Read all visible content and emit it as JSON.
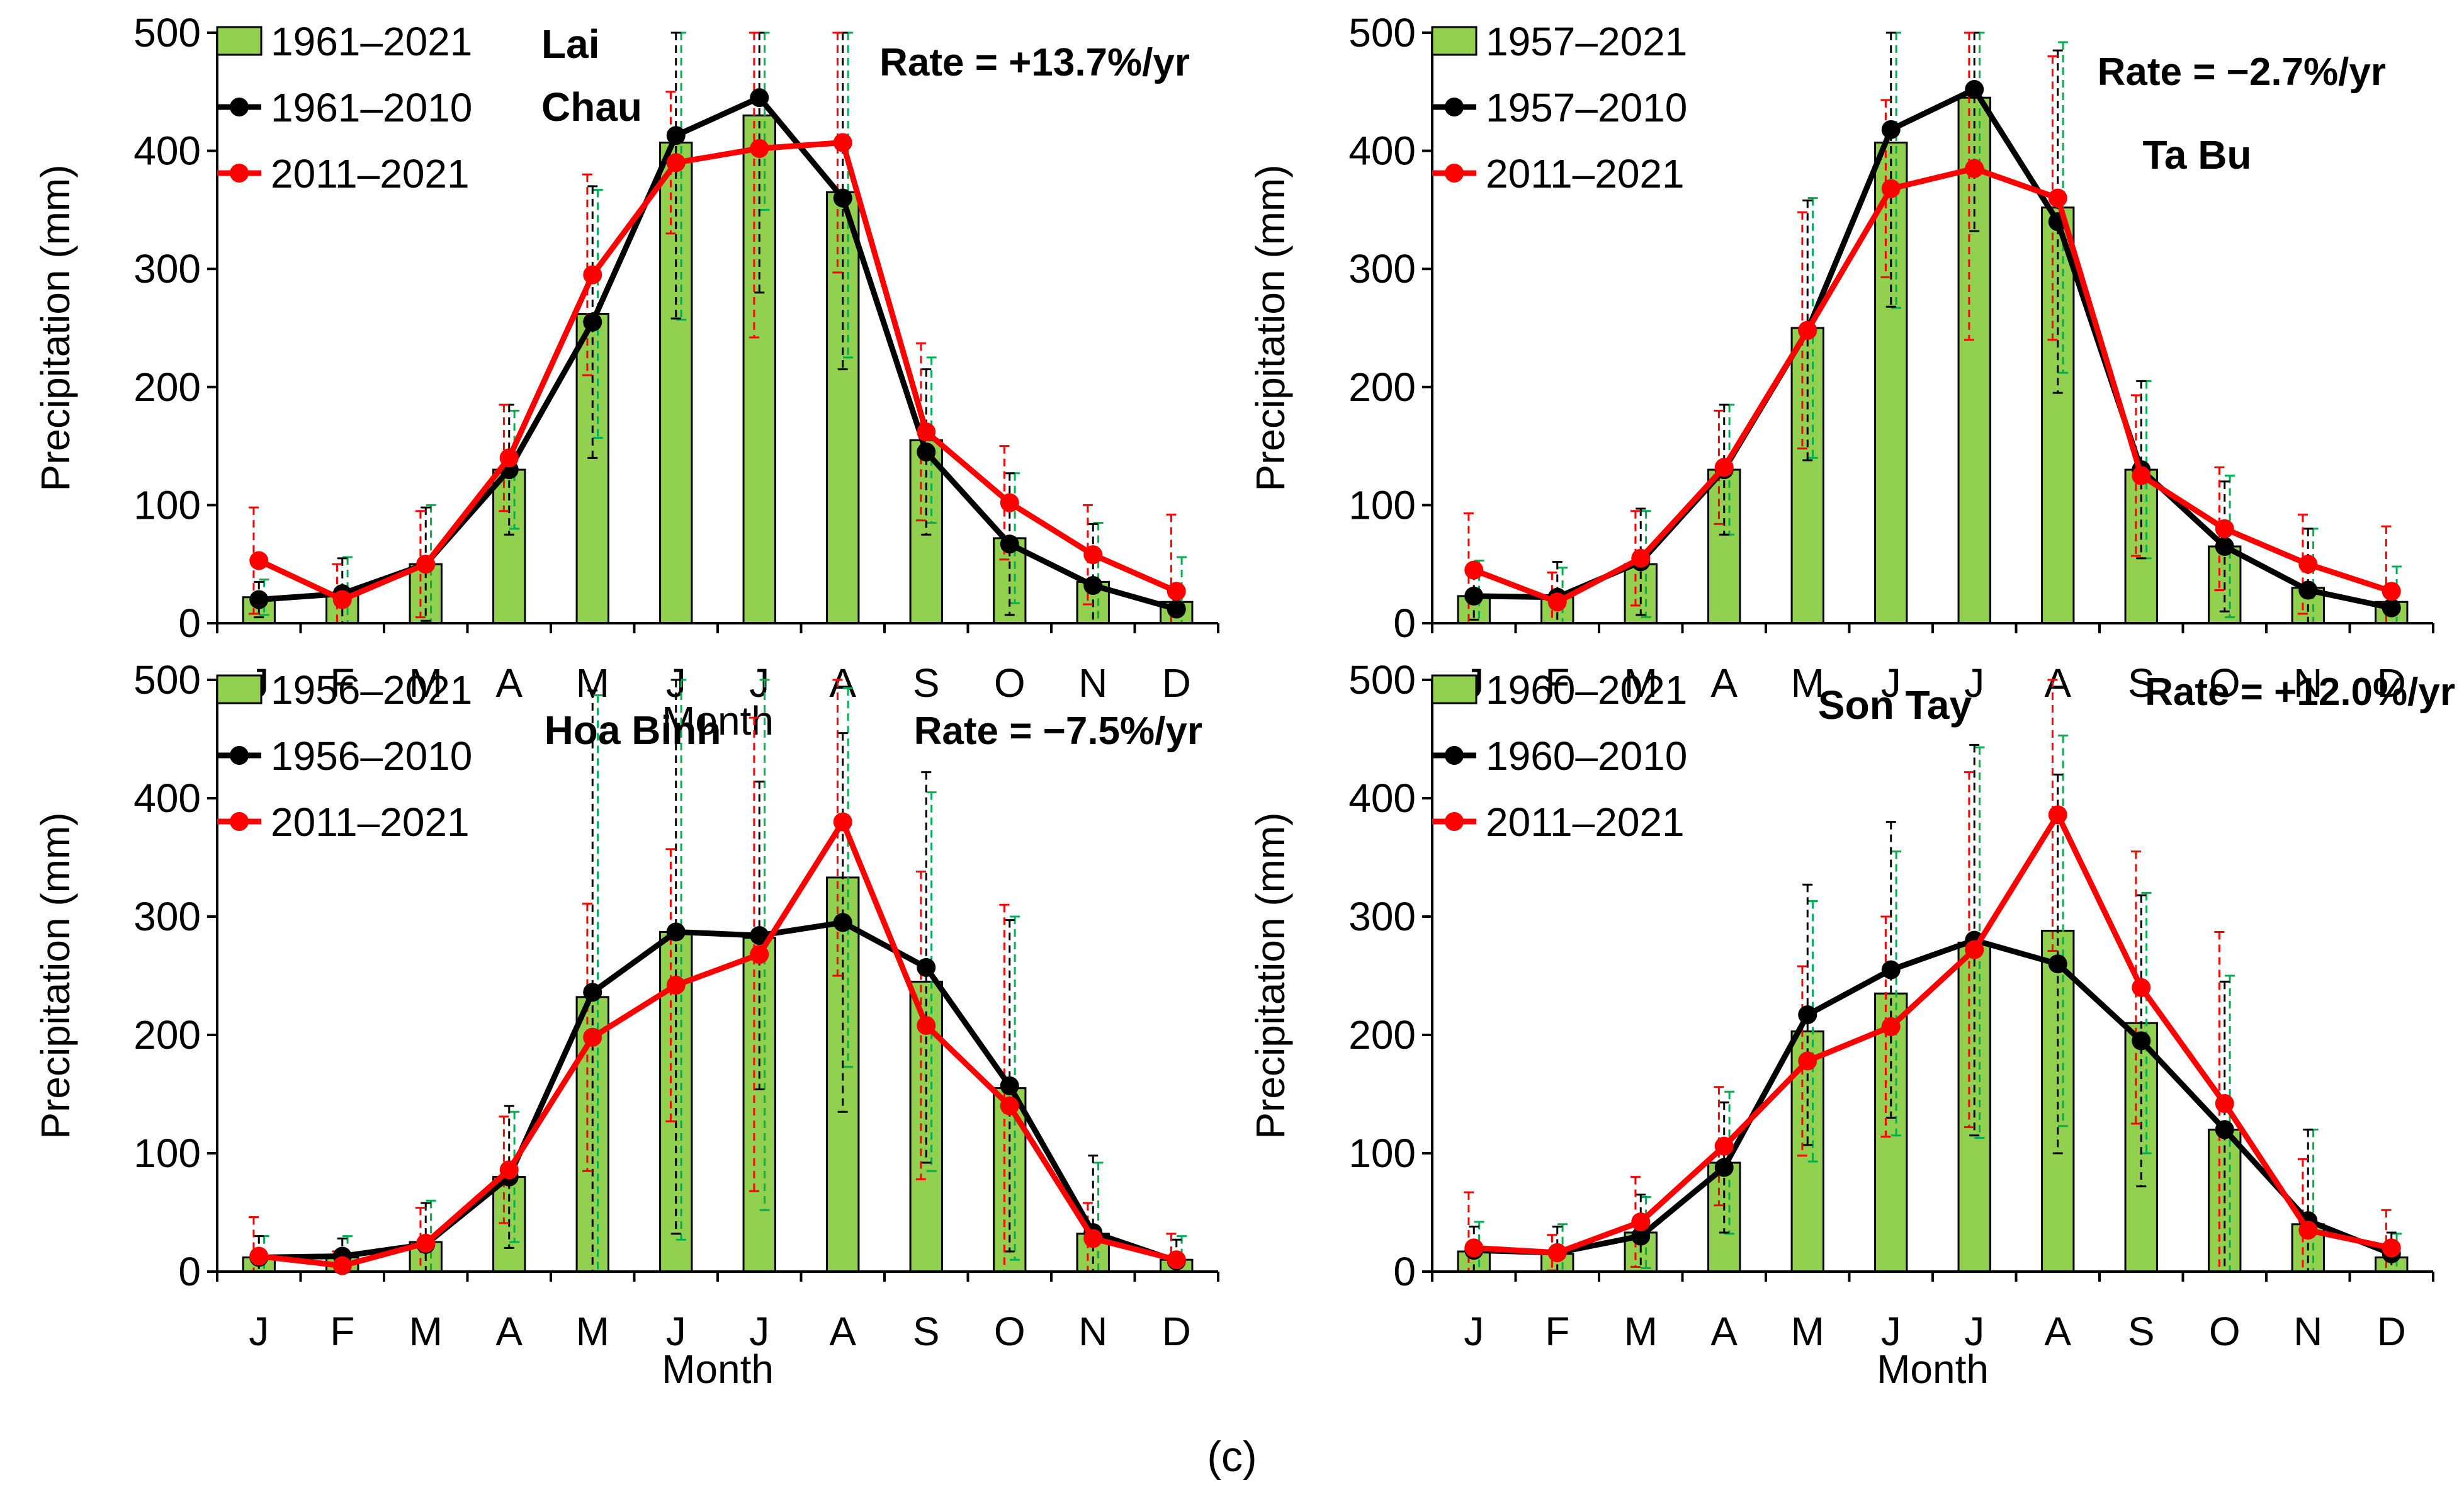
{
  "figure": {
    "caption": "(c)",
    "colors": {
      "bar_fill": "#92d050",
      "bar_stroke": "#000000",
      "early_line": "#000000",
      "recent_line": "#ff0000",
      "bar_error": "#00b050",
      "axis": "#000000"
    }
  },
  "chart_data": [
    {
      "type": "bar",
      "station": "Lai Chau",
      "title_lines": [
        "Lai",
        "Chau"
      ],
      "rate": "Rate = +13.7%/yr",
      "categories": [
        "J",
        "F",
        "M",
        "A",
        "M",
        "J",
        "J",
        "A",
        "S",
        "O",
        "N",
        "D"
      ],
      "xlabel": "Month",
      "ylabel": "Precipitation (mm)",
      "ylim": [
        0,
        500
      ],
      "yticks": [
        0,
        100,
        200,
        300,
        400,
        500
      ],
      "legend": [
        "1961–2021",
        "1961–2010",
        "2011–2021"
      ],
      "series": [
        {
          "name": "1961–2021",
          "kind": "bar",
          "values": [
            22,
            24,
            50,
            130,
            262,
            407,
            430,
            365,
            155,
            72,
            35,
            18
          ],
          "error": [
            15,
            32,
            50,
            50,
            105,
            150,
            80,
            140,
            70,
            55,
            50,
            38
          ]
        },
        {
          "name": "1961–2010",
          "kind": "line",
          "values": [
            20,
            25,
            50,
            130,
            255,
            413,
            445,
            360,
            145,
            67,
            32,
            12
          ],
          "error": [
            15,
            30,
            48,
            55,
            115,
            155,
            165,
            145,
            70,
            60,
            52,
            20
          ]
        },
        {
          "name": "2011–2021",
          "kind": "line",
          "values": [
            53,
            20,
            50,
            140,
            295,
            390,
            402,
            407,
            162,
            102,
            58,
            27
          ],
          "error": [
            45,
            30,
            45,
            45,
            85,
            60,
            160,
            110,
            75,
            48,
            42,
            65
          ]
        }
      ]
    },
    {
      "type": "bar",
      "station": "Ta Bu",
      "title_lines": [
        "Ta Bu"
      ],
      "rate": "Rate = −2.7%/yr",
      "categories": [
        "J",
        "F",
        "M",
        "A",
        "M",
        "J",
        "J",
        "A",
        "S",
        "O",
        "N",
        "D"
      ],
      "xlabel": "",
      "ylabel": "Precipitation (mm)",
      "ylim": [
        0,
        500
      ],
      "yticks": [
        0,
        100,
        200,
        300,
        400,
        500
      ],
      "legend": [
        "1957–2021",
        "1957–2010",
        "2011–2021"
      ],
      "series": [
        {
          "name": "1957–2021",
          "kind": "bar",
          "values": [
            23,
            22,
            50,
            130,
            250,
            407,
            445,
            352,
            130,
            65,
            30,
            18
          ],
          "error": [
            30,
            25,
            45,
            55,
            110,
            140,
            60,
            140,
            75,
            60,
            50,
            30
          ]
        },
        {
          "name": "1957–2010",
          "kind": "line",
          "values": [
            23,
            22,
            52,
            130,
            248,
            418,
            452,
            340,
            130,
            65,
            28,
            13
          ],
          "error": [
            20,
            30,
            45,
            55,
            110,
            150,
            120,
            145,
            75,
            55,
            52,
            20
          ]
        },
        {
          "name": "2011–2021",
          "kind": "line",
          "values": [
            45,
            18,
            55,
            132,
            248,
            368,
            385,
            360,
            125,
            80,
            50,
            27
          ],
          "error": [
            48,
            25,
            40,
            48,
            100,
            75,
            145,
            120,
            68,
            52,
            42,
            55
          ]
        }
      ]
    },
    {
      "type": "bar",
      "station": "Hoa Binh",
      "title_lines": [
        "Hoa Binh"
      ],
      "rate": "Rate = −7.5%/yr",
      "categories": [
        "J",
        "F",
        "M",
        "A",
        "M",
        "J",
        "J",
        "A",
        "S",
        "O",
        "N",
        "D"
      ],
      "xlabel": "Month",
      "ylabel": "Precipitation (mm)",
      "ylim": [
        0,
        500
      ],
      "yticks": [
        0,
        100,
        200,
        300,
        400,
        500
      ],
      "legend": [
        "1956–2021",
        "1956–2010",
        "2011–2021"
      ],
      "series": [
        {
          "name": "1956–2021",
          "kind": "bar",
          "values": [
            12,
            12,
            25,
            80,
            232,
            287,
            282,
            333,
            245,
            155,
            32,
            10
          ],
          "error": [
            18,
            18,
            35,
            55,
            255,
            260,
            230,
            160,
            160,
            145,
            60,
            20
          ]
        },
        {
          "name": "1956–2010",
          "kind": "line",
          "values": [
            12,
            13,
            23,
            80,
            236,
            287,
            284,
            295,
            257,
            157,
            33,
            9
          ],
          "error": [
            18,
            15,
            35,
            60,
            255,
            255,
            130,
            160,
            165,
            140,
            65,
            18
          ]
        },
        {
          "name": "2011–2021",
          "kind": "line",
          "values": [
            13,
            5,
            24,
            86,
            198,
            242,
            268,
            380,
            208,
            140,
            28,
            10
          ],
          "error": [
            33,
            12,
            30,
            45,
            113,
            115,
            200,
            130,
            130,
            170,
            30,
            22
          ]
        }
      ]
    },
    {
      "type": "bar",
      "station": "Son Tay",
      "title_lines": [
        "Son Tay"
      ],
      "rate": "Rate = +12.0%/yr",
      "categories": [
        "J",
        "F",
        "M",
        "A",
        "M",
        "J",
        "J",
        "A",
        "S",
        "O",
        "N",
        "D"
      ],
      "xlabel": "Month",
      "ylabel": "Precipitation (mm)",
      "ylim": [
        0,
        500
      ],
      "yticks": [
        0,
        100,
        200,
        300,
        400,
        500
      ],
      "legend": [
        "1960–2021",
        "1960–2010",
        "2011–2021"
      ],
      "series": [
        {
          "name": "1960–2021",
          "kind": "bar",
          "values": [
            17,
            15,
            33,
            92,
            203,
            235,
            278,
            288,
            210,
            120,
            40,
            12
          ],
          "error": [
            25,
            25,
            30,
            60,
            110,
            120,
            165,
            165,
            110,
            130,
            80,
            20
          ]
        },
        {
          "name": "1960–2010",
          "kind": "line",
          "values": [
            18,
            16,
            30,
            88,
            217,
            255,
            280,
            260,
            195,
            120,
            43,
            15
          ],
          "error": [
            20,
            22,
            35,
            55,
            110,
            125,
            165,
            160,
            123,
            125,
            77,
            18
          ]
        },
        {
          "name": "2011–2021",
          "kind": "line",
          "values": [
            20,
            16,
            42,
            106,
            178,
            207,
            272,
            386,
            240,
            142,
            35,
            20
          ],
          "error": [
            47,
            15,
            38,
            50,
            80,
            93,
            150,
            115,
            115,
            145,
            60,
            32
          ]
        }
      ]
    }
  ]
}
